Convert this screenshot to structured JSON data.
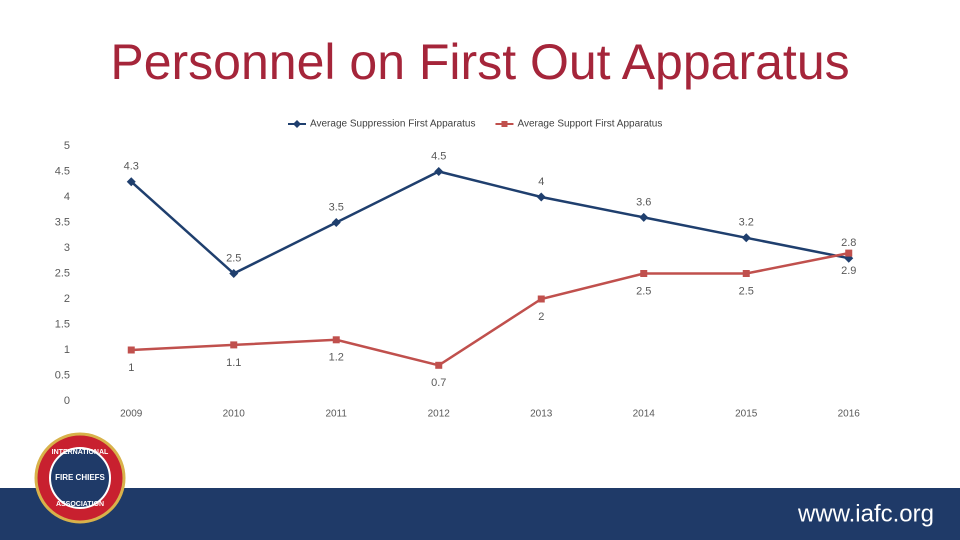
{
  "chart_data": {
    "type": "line",
    "title": "Personnel on First Out Apparatus",
    "categories": [
      "2009",
      "2010",
      "2011",
      "2012",
      "2013",
      "2014",
      "2015",
      "2016"
    ],
    "series": [
      {
        "name": "Average Suppression First Apparatus",
        "color": "#1f3f6e",
        "marker": "diamond",
        "values": [
          4.3,
          2.5,
          3.5,
          4.5,
          4,
          3.6,
          3.2,
          2.8
        ]
      },
      {
        "name": "Average Support First Apparatus",
        "color": "#c0504d",
        "marker": "square",
        "values": [
          1,
          1.1,
          1.2,
          0.7,
          2,
          2.5,
          2.5,
          2.9
        ]
      }
    ],
    "ylim": [
      0,
      5
    ],
    "yticks": [
      0,
      0.5,
      1,
      1.5,
      2,
      2.5,
      3,
      3.5,
      4,
      4.5,
      5
    ],
    "legend": "top",
    "grid": false
  },
  "logo": {
    "lines": [
      "INTERNATIONAL",
      "FIRE CHIEFS",
      "ASSOCIATION"
    ]
  },
  "footer": {
    "url": "www.iafc.org"
  }
}
